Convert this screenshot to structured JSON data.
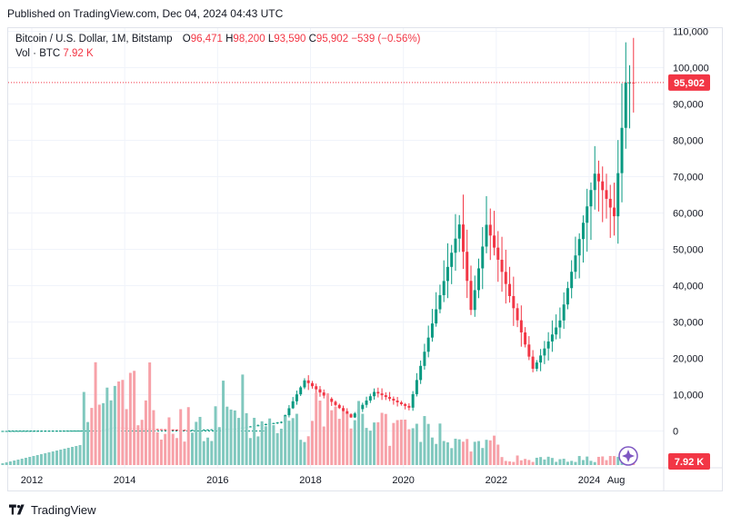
{
  "header": {
    "publisher_text": "Published on TradingView.com, Dec 04, 2024 04:43 UTC"
  },
  "legend": {
    "symbol": "Bitcoin / U.S. Dollar, 1M, Bitstamp",
    "o_label": "O",
    "o_value": "96,471",
    "h_label": "H",
    "h_value": "98,200",
    "l_label": "L",
    "l_value": "93,590",
    "c_label": "C",
    "c_value": "95,902",
    "change": "−539 (−0.56%)",
    "vol_label": "Vol · BTC",
    "vol_value": "7.92 K"
  },
  "price_tag": "95,902",
  "volume_tag": "7.92 K",
  "footer": {
    "brand": "TradingView"
  },
  "colors": {
    "up": "#089981",
    "down": "#f23645",
    "vol_up": "#80c8be",
    "vol_down": "#f7a1a8",
    "grid": "#f0f3fa",
    "accent": "#7e57c2"
  },
  "chart_data": {
    "type": "candlestick",
    "title": "Bitcoin / U.S. Dollar, 1M, Bitstamp",
    "y_ticks": [
      "110,000",
      "100,000",
      "90,000",
      "80,000",
      "70,000",
      "60,000",
      "50,000",
      "40,000",
      "30,000",
      "20,000",
      "10,000",
      "0"
    ],
    "y_tick_values": [
      110000,
      100000,
      90000,
      80000,
      70000,
      60000,
      50000,
      40000,
      30000,
      20000,
      10000,
      0
    ],
    "x_ticks": [
      "2012",
      "2014",
      "2016",
      "2018",
      "2020",
      "2022",
      "2024",
      "Aug"
    ],
    "ylim": [
      0,
      110000
    ],
    "last_close": 95902,
    "series": [
      {
        "name": "Price",
        "approx_path": [
          {
            "t": "2013-11",
            "v": 1000
          },
          {
            "t": "2014-06",
            "v": 600
          },
          {
            "t": "2015-06",
            "v": 250
          },
          {
            "t": "2016-06",
            "v": 650
          },
          {
            "t": "2017-06",
            "v": 2500
          },
          {
            "t": "2017-12",
            "v": 14000
          },
          {
            "t": "2018-12",
            "v": 3700
          },
          {
            "t": "2019-06",
            "v": 10800
          },
          {
            "t": "2020-03",
            "v": 6400
          },
          {
            "t": "2021-04",
            "v": 57000
          },
          {
            "t": "2021-07",
            "v": 33000
          },
          {
            "t": "2021-11",
            "v": 57000
          },
          {
            "t": "2022-11",
            "v": 17000
          },
          {
            "t": "2023-06",
            "v": 30500
          },
          {
            "t": "2024-03",
            "v": 71000
          },
          {
            "t": "2024-08",
            "v": 59000
          },
          {
            "t": "2024-11",
            "v": 96400
          },
          {
            "t": "2024-12",
            "v": 95902
          }
        ]
      },
      {
        "name": "Vol · BTC",
        "last": "7.92 K"
      }
    ]
  }
}
